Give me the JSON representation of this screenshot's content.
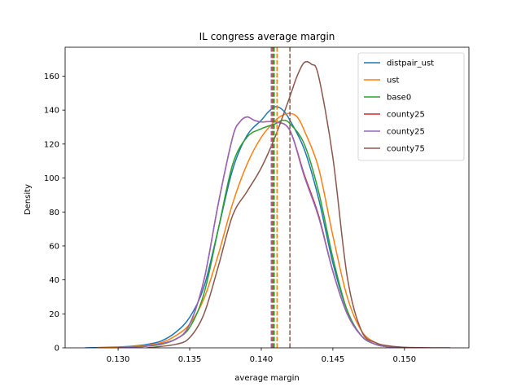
{
  "chart_data": {
    "type": "line",
    "title": "IL congress average margin",
    "xlabel": "average margin",
    "ylabel": "Density",
    "xlim": [
      0.1263,
      0.1545
    ],
    "ylim": [
      0,
      177
    ],
    "xticks": [
      0.13,
      0.135,
      0.14,
      0.145,
      0.15
    ],
    "xtick_labels": [
      "0.130",
      "0.135",
      "0.140",
      "0.145",
      "0.150"
    ],
    "yticks": [
      0,
      20,
      40,
      60,
      80,
      100,
      120,
      140,
      160
    ],
    "ytick_labels": [
      "0",
      "20",
      "40",
      "60",
      "80",
      "100",
      "120",
      "140",
      "160"
    ],
    "grid": false,
    "legend_position": "top-right",
    "series": [
      {
        "name": "distpair_ust",
        "color": "#1f77b4",
        "mean": 0.1408,
        "x": [
          0.1277,
          0.13,
          0.131,
          0.132,
          0.133,
          0.134,
          0.135,
          0.136,
          0.137,
          0.138,
          0.139,
          0.14,
          0.1405,
          0.141,
          0.1415,
          0.142,
          0.143,
          0.144,
          0.145,
          0.146,
          0.147,
          0.148,
          0.149,
          0.15
        ],
        "y": [
          0,
          0.5,
          1,
          2,
          4,
          9,
          18,
          36,
          70,
          105,
          125,
          134,
          139,
          142,
          140,
          134,
          117,
          88,
          50,
          22,
          7,
          2,
          0.5,
          0
        ]
      },
      {
        "name": "ust",
        "color": "#ff7f0e",
        "mean": 0.1411,
        "x": [
          0.1285,
          0.13,
          0.132,
          0.133,
          0.134,
          0.135,
          0.136,
          0.137,
          0.138,
          0.139,
          0.14,
          0.141,
          0.1415,
          0.142,
          0.1425,
          0.143,
          0.144,
          0.145,
          0.146,
          0.147,
          0.148,
          0.149,
          0.1505
        ],
        "y": [
          0,
          0.3,
          1.5,
          3,
          7,
          14,
          29,
          55,
          85,
          108,
          124,
          134,
          137,
          138,
          136,
          128,
          106,
          66,
          30,
          10,
          3,
          1,
          0
        ]
      },
      {
        "name": "base0",
        "color": "#2ca02c",
        "mean": 0.1409,
        "x": [
          0.13,
          0.132,
          0.133,
          0.134,
          0.135,
          0.136,
          0.137,
          0.138,
          0.139,
          0.14,
          0.141,
          0.1415,
          0.142,
          0.143,
          0.144,
          0.145,
          0.146,
          0.147,
          0.148,
          0.149,
          0.15
        ],
        "y": [
          0,
          1,
          2,
          5,
          12,
          32,
          70,
          108,
          124,
          129,
          132,
          134,
          132,
          120,
          92,
          53,
          22,
          7,
          2,
          0.5,
          0
        ]
      },
      {
        "name": "county25",
        "color": "#d62728",
        "mean": 0.1408,
        "x": [
          0.13,
          0.132,
          0.134,
          0.135,
          0.136,
          0.137,
          0.138,
          0.1385,
          0.139,
          0.1395,
          0.14,
          0.141,
          0.142,
          0.143,
          0.144,
          0.145,
          0.146,
          0.147,
          0.148,
          0.149,
          0.15
        ],
        "y": [
          0,
          1,
          5,
          14,
          40,
          85,
          124,
          133,
          136,
          134,
          133,
          133,
          128,
          102,
          78,
          45,
          20,
          7,
          2,
          0.5,
          0
        ]
      },
      {
        "name": "county25",
        "color": "#9467bd",
        "mean": 0.1407,
        "x": [
          0.13,
          0.132,
          0.134,
          0.135,
          0.136,
          0.137,
          0.138,
          0.1385,
          0.139,
          0.1395,
          0.14,
          0.141,
          0.142,
          0.143,
          0.144,
          0.145,
          0.146,
          0.147,
          0.148,
          0.149,
          0.15
        ],
        "y": [
          0,
          1,
          5,
          14,
          40,
          85,
          124,
          133,
          136,
          134,
          133,
          133,
          128,
          101,
          77,
          45,
          20,
          7,
          2,
          0.5,
          0
        ]
      },
      {
        "name": "county75",
        "color": "#8c564b",
        "mean": 0.142,
        "x": [
          0.132,
          0.134,
          0.135,
          0.136,
          0.137,
          0.138,
          0.139,
          0.14,
          0.141,
          0.142,
          0.1425,
          0.143,
          0.1435,
          0.144,
          0.145,
          0.146,
          0.147,
          0.148,
          0.149,
          0.15,
          0.152,
          0.1532
        ],
        "y": [
          0,
          2,
          6,
          20,
          48,
          78,
          92,
          106,
          125,
          148,
          160,
          168,
          167,
          160,
          112,
          42,
          10,
          3,
          1,
          0.3,
          0,
          0
        ]
      }
    ]
  }
}
